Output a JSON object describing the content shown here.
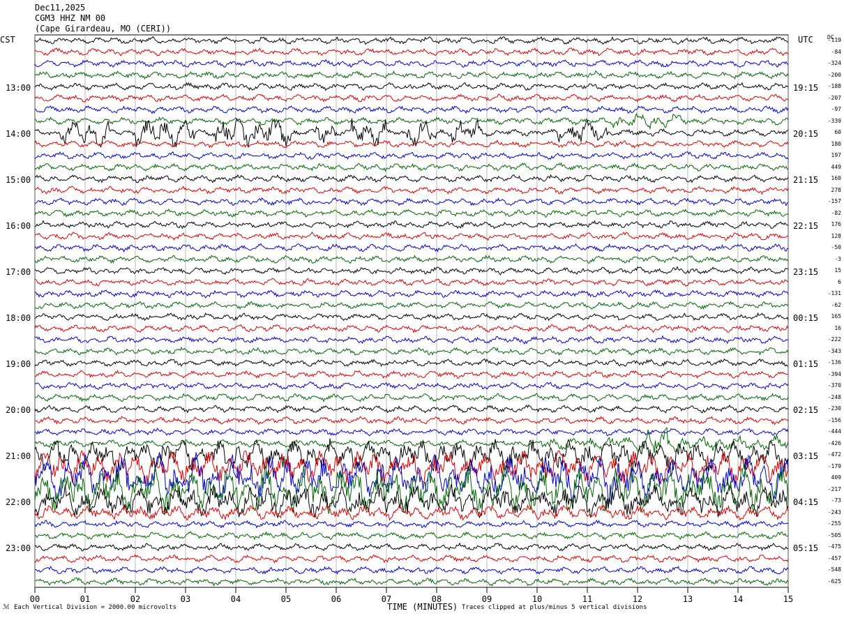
{
  "header": {
    "date": "Dec11,2025",
    "station": "CGM3 HHZ NM 00",
    "location": "(Cape Girardeau, MO (CERI))"
  },
  "corner_left": "CST",
  "corner_right": "UTC",
  "dc_label": "DC",
  "footer": {
    "scale_note": "Each Vertical Division = 2000.00 microvolts",
    "xlabel": "TIME (MINUTES)",
    "clip_note": "Traces clipped at plus/minus 5 vertical divisions"
  },
  "chart_data": {
    "type": "line",
    "title": "CGM3 HHZ NM 00",
    "xlabel": "TIME (MINUTES)",
    "x_ticks": [
      "00",
      "01",
      "02",
      "03",
      "04",
      "05",
      "06",
      "07",
      "08",
      "09",
      "10",
      "11",
      "12",
      "13",
      "14",
      "15"
    ],
    "xlim": [
      0,
      15
    ],
    "left_time_labels": [
      "13:00",
      "14:00",
      "15:00",
      "16:00",
      "17:00",
      "18:00",
      "19:00",
      "20:00",
      "21:00",
      "22:00",
      "23:00"
    ],
    "right_time_labels": [
      "19:15",
      "20:15",
      "21:15",
      "22:15",
      "23:15",
      "00:15",
      "01:15",
      "02:15",
      "03:15",
      "04:15",
      "05:15"
    ],
    "dc_offsets": [
      "-119",
      "-84",
      "-324",
      "-200",
      "-188",
      "-207",
      "-97",
      "-339",
      "60",
      "180",
      "197",
      "449",
      "160",
      "278",
      "-157",
      "-82",
      "176",
      "128",
      "-50",
      "-3",
      "15",
      "6",
      "-131",
      "-62",
      "165",
      "16",
      "-222",
      "-343",
      "-136",
      "-394",
      "-370",
      "-248",
      "-230",
      "-156",
      "-444",
      "-426",
      "-472",
      "-179",
      "409",
      "-217",
      "-73",
      "-243",
      "-255",
      "-505",
      "-475",
      "-457",
      "-548",
      "-625"
    ],
    "trace_color_cycle": [
      "#000000",
      "#dd0000",
      "#0000cc",
      "#006600"
    ],
    "grid": "vertical lines at each minute",
    "trace_count": 48,
    "minutes_per_trace": 15
  }
}
